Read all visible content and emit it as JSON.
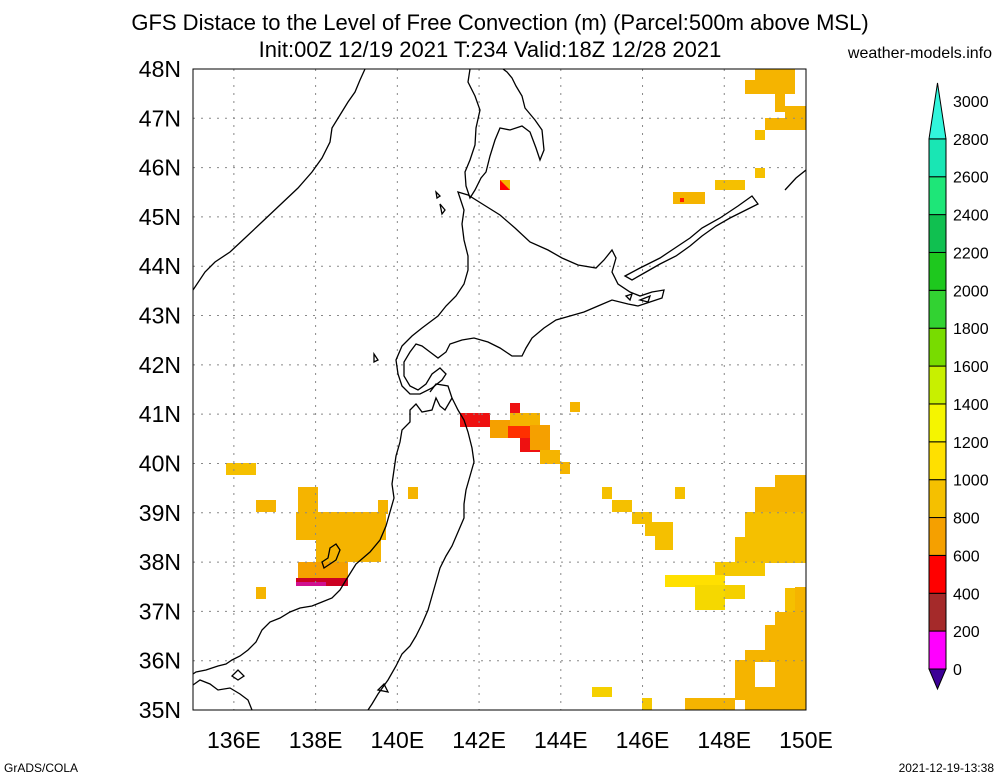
{
  "title_line1": "GFS Distace to the Level of Free Convection (m) (Parcel:500m above MSL)",
  "title_line2": "Init:00Z 12/19 2021 T:234 Valid:18Z 12/28 2021",
  "site": "weather-models.info",
  "footer_left": "GrADS/COLA",
  "footer_right": "2021-12-19-13:38",
  "map": {
    "lon_range": [
      135,
      150
    ],
    "lat_range": [
      35,
      48
    ],
    "lon_ticks": [
      "136E",
      "138E",
      "140E",
      "142E",
      "144E",
      "146E",
      "148E",
      "150E"
    ],
    "lat_ticks": [
      "35N",
      "36N",
      "37N",
      "38N",
      "39N",
      "40N",
      "41N",
      "42N",
      "43N",
      "44N",
      "45N",
      "46N",
      "47N",
      "48N"
    ]
  },
  "colorbar": {
    "labels": [
      "0",
      "200",
      "400",
      "600",
      "800",
      "1000",
      "1200",
      "1400",
      "1600",
      "1800",
      "2000",
      "2200",
      "2400",
      "2600",
      "2800",
      "3000"
    ],
    "colors": [
      "#3c0096",
      "#ff00ff",
      "#a52a2a",
      "#ff0000",
      "#f5a000",
      "#f5c000",
      "#ffe000",
      "#f5f500",
      "#c8f000",
      "#78dc00",
      "#32d232",
      "#1ec81e",
      "#10c050",
      "#1ee678",
      "#19e6b4",
      "#32f5dc"
    ]
  }
}
